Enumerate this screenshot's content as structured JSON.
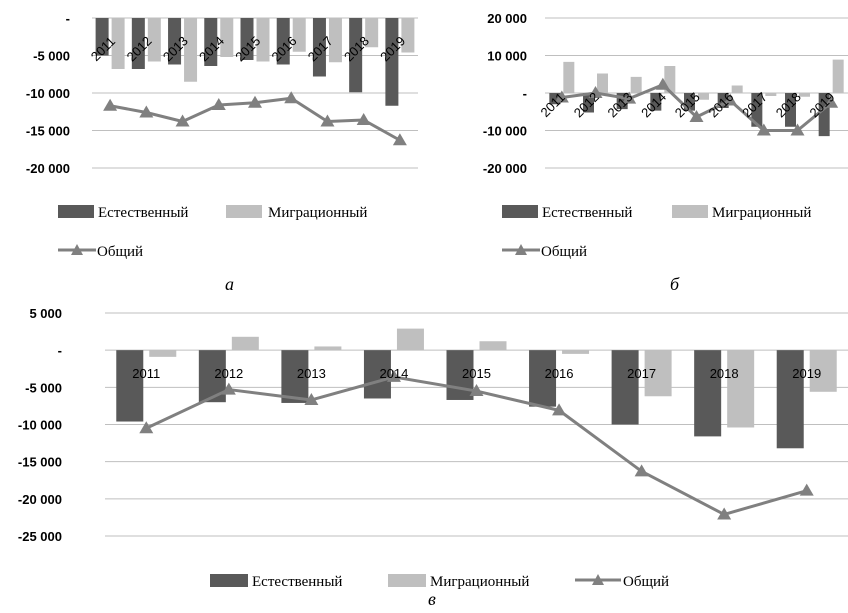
{
  "legend": {
    "natural": "Естественный",
    "migration": "Миграционный",
    "total": "Общий"
  },
  "colors": {
    "natural": "#595959",
    "migration": "#bfbfbf",
    "total": "#808080",
    "grid": "#bfbfbf"
  },
  "chart_data": [
    {
      "type": "bar",
      "caption": "а",
      "categories": [
        "2011",
        "2012",
        "2013",
        "2014",
        "2015",
        "2016",
        "2017",
        "2018",
        "2019"
      ],
      "ylim": [
        -20000,
        0
      ],
      "y_ticks": [
        "-",
        "-5 000",
        "-10 000",
        "-15 000",
        "-20 000"
      ],
      "series": [
        {
          "name": "Естественный",
          "type": "bar",
          "values": [
            -5000,
            -6800,
            -6200,
            -6400,
            -5600,
            -6200,
            -7800,
            -9900,
            -11700
          ]
        },
        {
          "name": "Миграционный",
          "type": "bar",
          "values": [
            -6800,
            -5800,
            -8500,
            -5200,
            -5800,
            -4500,
            -5900,
            -3900,
            -4600
          ]
        },
        {
          "name": "Общий",
          "type": "line",
          "values": [
            -11700,
            -12600,
            -13800,
            -11600,
            -11300,
            -10700,
            -13800,
            -13600,
            -16300
          ]
        }
      ]
    },
    {
      "type": "bar",
      "caption": "б",
      "categories": [
        "2011",
        "2012",
        "2013",
        "2014",
        "2015",
        "2016",
        "2017",
        "2018",
        "2019"
      ],
      "ylim": [
        -20000,
        20000
      ],
      "y_ticks": [
        "20 000",
        "10 000",
        "-",
        "-10 000",
        "-20 000"
      ],
      "series": [
        {
          "name": "Естественный",
          "type": "bar",
          "values": [
            -3000,
            -5200,
            -4300,
            -4700,
            -4700,
            -4000,
            -9000,
            -9000,
            -11500
          ]
        },
        {
          "name": "Миграционный",
          "type": "bar",
          "values": [
            8300,
            5200,
            4300,
            7200,
            -1800,
            2000,
            -800,
            -1000,
            8900
          ]
        },
        {
          "name": "Общий",
          "type": "line",
          "values": [
            -1200,
            0,
            -1500,
            2200,
            -6400,
            -2000,
            -10000,
            -10000,
            -2600
          ]
        }
      ]
    },
    {
      "type": "bar",
      "caption": "в",
      "categories": [
        "2011",
        "2012",
        "2013",
        "2014",
        "2015",
        "2016",
        "2017",
        "2018",
        "2019"
      ],
      "ylim": [
        -25000,
        5000
      ],
      "y_ticks": [
        "5 000",
        "-",
        "-5 000",
        "-10 000",
        "-15 000",
        "-20 000",
        "-25 000"
      ],
      "series": [
        {
          "name": "Естественный",
          "type": "bar",
          "values": [
            -9600,
            -7000,
            -7100,
            -6500,
            -6700,
            -7600,
            -10000,
            -11600,
            -13200
          ]
        },
        {
          "name": "Миграционный",
          "type": "bar",
          "values": [
            -900,
            1800,
            500,
            2900,
            1200,
            -500,
            -6200,
            -10400,
            -5600
          ]
        },
        {
          "name": "Общий",
          "type": "line",
          "values": [
            -10500,
            -5300,
            -6700,
            -3600,
            -5500,
            -8100,
            -16300,
            -22100,
            -18900
          ]
        }
      ]
    }
  ]
}
